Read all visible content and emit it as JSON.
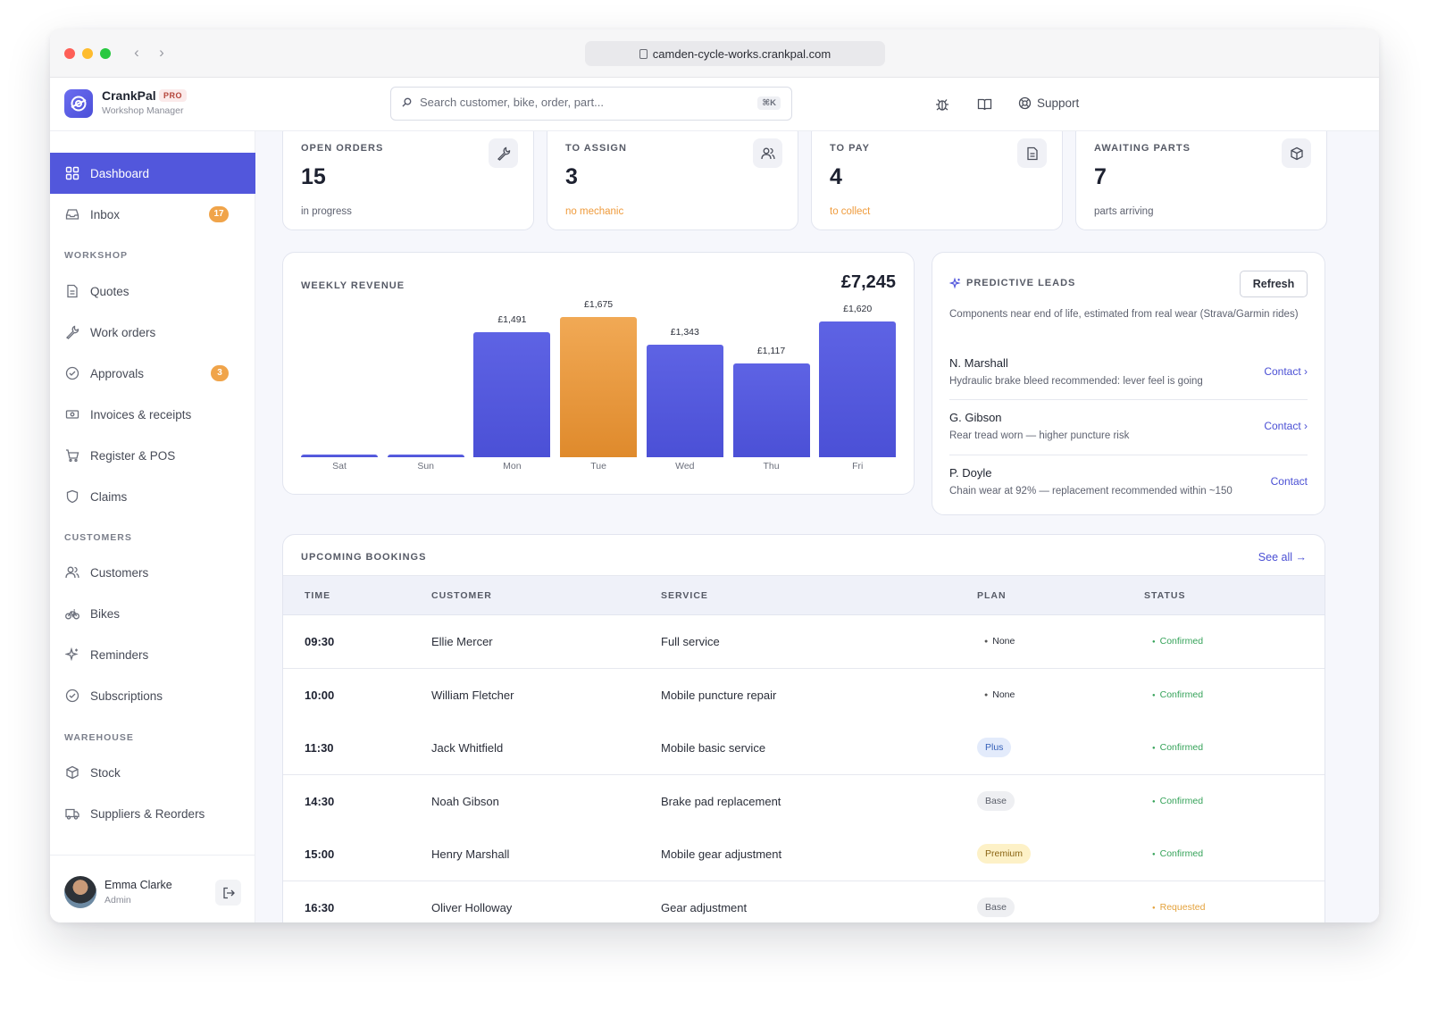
{
  "browser": {
    "url": "camden-cycle-works.crankpal.com"
  },
  "app": {
    "name": "CrankPal",
    "badge": "PRO",
    "subtitle": "Workshop Manager"
  },
  "search": {
    "placeholder": "Search customer, bike, order, part...",
    "shortcut": "⌘K"
  },
  "header": {
    "support_label": "Support"
  },
  "sidebar": {
    "dashboard": "Dashboard",
    "inbox": "Inbox",
    "inbox_badge": "17",
    "workshop_label": "WORKSHOP",
    "quotes": "Quotes",
    "work_orders": "Work orders",
    "approvals": "Approvals",
    "approvals_badge": "3",
    "invoices": "Invoices & receipts",
    "register": "Register & POS",
    "claims": "Claims",
    "customers_label": "CUSTOMERS",
    "customers": "Customers",
    "bikes": "Bikes",
    "reminders": "Reminders",
    "subscriptions": "Subscriptions",
    "warehouse_label": "WAREHOUSE",
    "stock": "Stock",
    "suppliers": "Suppliers & Reorders"
  },
  "user": {
    "name": "Emma Clarke",
    "role": "Admin"
  },
  "stats": [
    {
      "label": "OPEN ORDERS",
      "value": "15",
      "sub": "in progress"
    },
    {
      "label": "TO ASSIGN",
      "value": "3",
      "sub": "no mechanic"
    },
    {
      "label": "TO PAY",
      "value": "4",
      "sub": "to collect"
    },
    {
      "label": "AWAITING PARTS",
      "value": "7",
      "sub": "parts arriving"
    }
  ],
  "revenue": {
    "title": "WEEKLY REVENUE",
    "total": "£7,245"
  },
  "chart_data": {
    "type": "bar",
    "title": "WEEKLY REVENUE",
    "categories": [
      "Sat",
      "Sun",
      "Mon",
      "Tue",
      "Wed",
      "Thu",
      "Fri"
    ],
    "values": [
      0,
      0,
      1491,
      1675,
      1343,
      1117,
      1620
    ],
    "labels": [
      "",
      "",
      "£1,491",
      "£1,675",
      "£1,343",
      "£1,117",
      "£1,620"
    ],
    "highlight_index": 3,
    "colors": {
      "bar": "#5257dc",
      "highlight": "#ef9b3c"
    }
  },
  "leads": {
    "title": "PREDICTIVE LEADS",
    "refresh_label": "Refresh",
    "description": "Components near end of life, estimated from real wear (Strava/Garmin rides)",
    "items": [
      {
        "name": "N. Marshall",
        "detail": "Hydraulic brake bleed recommended: lever feel is going",
        "action": "Contact ›"
      },
      {
        "name": "G. Gibson",
        "detail": "Rear tread worn — higher puncture risk",
        "action": "Contact ›"
      },
      {
        "name": "P. Doyle",
        "detail": "Chain wear at 92% — replacement recommended within ~150",
        "action": "Contact"
      }
    ]
  },
  "bookings": {
    "title": "UPCOMING BOOKINGS",
    "see_all": "See all →",
    "columns": [
      "TIME",
      "CUSTOMER",
      "SERVICE",
      "PLAN",
      "STATUS"
    ],
    "rows": [
      {
        "time": "09:30",
        "customer": "Ellie Mercer",
        "service": "Full service",
        "plan": "None",
        "status": "Confirmed"
      },
      {
        "time": "10:00",
        "customer": "William Fletcher",
        "service": "Mobile puncture repair",
        "plan": "None",
        "status": "Confirmed"
      },
      {
        "time": "11:30",
        "customer": "Jack Whitfield",
        "service": "Mobile basic service",
        "plan": "Plus",
        "status": "Confirmed"
      },
      {
        "time": "14:30",
        "customer": "Noah Gibson",
        "service": "Brake pad replacement",
        "plan": "Base",
        "status": "Confirmed"
      },
      {
        "time": "15:00",
        "customer": "Henry Marshall",
        "service": "Mobile gear adjustment",
        "plan": "Premium",
        "status": "Confirmed"
      },
      {
        "time": "16:30",
        "customer": "Oliver Holloway",
        "service": "Gear adjustment",
        "plan": "Base",
        "status": "Requested"
      }
    ]
  }
}
